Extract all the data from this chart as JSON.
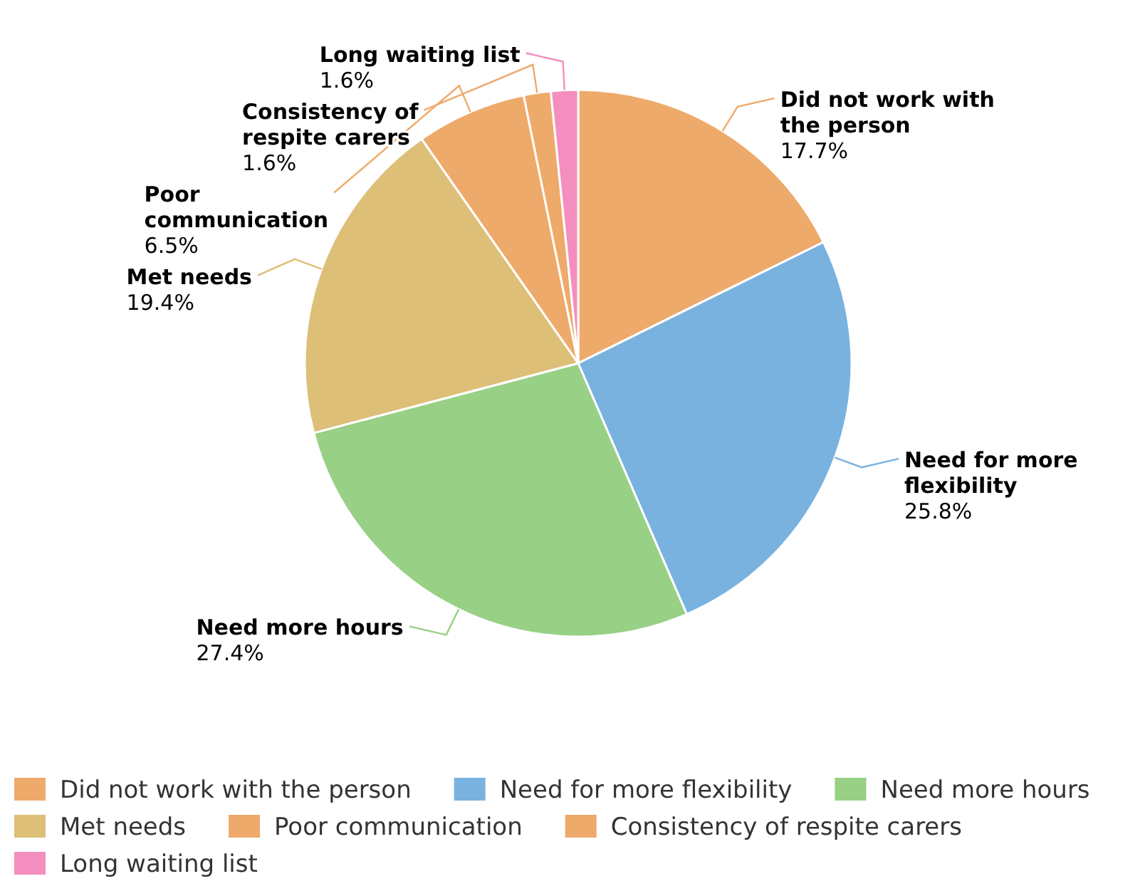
{
  "chart_data": {
    "type": "pie",
    "categories": [
      "Did not work with the person",
      "Need for more flexibility",
      "Need more hours",
      "Met needs",
      "Poor communication",
      "Consistency of respite carers",
      "Long waiting list"
    ],
    "values": [
      17.7,
      25.8,
      27.4,
      19.4,
      6.5,
      1.6,
      1.6
    ],
    "colors": [
      "#eeaa6a",
      "#79b2df",
      "#98d086",
      "#ddbf78",
      "#eeaa6a",
      "#eeaa6a",
      "#f48ebe"
    ],
    "value_labels": [
      "17.7%",
      "25.8%",
      "27.4%",
      "19.4%",
      "6.5%",
      "1.6%",
      "1.6%"
    ],
    "legend": "bottom"
  }
}
